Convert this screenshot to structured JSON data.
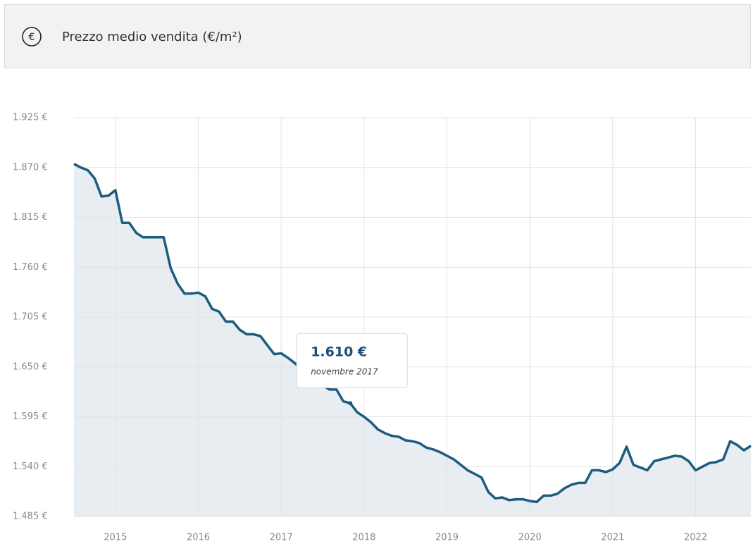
{
  "header": {
    "icon": "€"
  },
  "chart_data": {
    "type": "area",
    "title": "Prezzo medio vendita (€/m²)",
    "color": "#1d5c7e",
    "fill": "#e8edf1",
    "grid": true,
    "x": [
      2014.5,
      2014.583,
      2014.667,
      2014.75,
      2014.833,
      2014.917,
      2015,
      2015.083,
      2015.167,
      2015.25,
      2015.333,
      2015.417,
      2015.5,
      2015.583,
      2015.667,
      2015.75,
      2015.833,
      2015.917,
      2016,
      2016.083,
      2016.167,
      2016.25,
      2016.333,
      2016.417,
      2016.5,
      2016.583,
      2016.667,
      2016.75,
      2016.833,
      2016.917,
      2017,
      2017.083,
      2017.167,
      2017.25,
      2017.333,
      2017.417,
      2017.5,
      2017.583,
      2017.667,
      2017.75,
      2017.833,
      2017.917,
      2018,
      2018.083,
      2018.167,
      2018.25,
      2018.333,
      2018.417,
      2018.5,
      2018.583,
      2018.667,
      2018.75,
      2018.833,
      2018.917,
      2019,
      2019.083,
      2019.167,
      2019.25,
      2019.333,
      2019.417,
      2019.5,
      2019.583,
      2019.667,
      2019.75,
      2019.833,
      2019.917,
      2020,
      2020.083,
      2020.167,
      2020.25,
      2020.333,
      2020.417,
      2020.5,
      2020.583,
      2020.667,
      2020.75,
      2020.833,
      2020.917,
      2021,
      2021.083,
      2021.167,
      2021.25,
      2021.333,
      2021.417,
      2021.5,
      2021.583,
      2021.667,
      2021.75,
      2021.833,
      2021.917,
      2022,
      2022.083,
      2022.167,
      2022.25,
      2022.333,
      2022.417,
      2022.5,
      2022.583,
      2022.667
    ],
    "values": [
      1874,
      1870,
      1867,
      1858,
      1838,
      1839,
      1845,
      1809,
      1809,
      1798,
      1793,
      1793,
      1793,
      1793,
      1759,
      1742,
      1731,
      1731,
      1732,
      1728,
      1714,
      1711,
      1700,
      1700,
      1691,
      1686,
      1686,
      1684,
      1674,
      1664,
      1665,
      1660,
      1654,
      1647,
      1640,
      1635,
      1630,
      1625,
      1625,
      1612,
      1610,
      1600,
      1595,
      1589,
      1581,
      1577,
      1574,
      1573,
      1569,
      1568,
      1566,
      1561,
      1559,
      1556,
      1552,
      1548,
      1542,
      1536,
      1532,
      1528,
      1512,
      1505,
      1506,
      1503,
      1504,
      1504,
      1502,
      1501,
      1508,
      1508,
      1510,
      1516,
      1520,
      1522,
      1522,
      1536,
      1536,
      1534,
      1537,
      1544,
      1562,
      1542,
      1539,
      1536,
      1546,
      1548,
      1550,
      1552,
      1551,
      1546,
      1536,
      1540,
      1544,
      1545,
      1548,
      1568,
      1564,
      1558,
      1563
    ],
    "xlim": [
      2014.5,
      2022.667
    ],
    "xticks": [
      2015,
      2016,
      2017,
      2018,
      2019,
      2020,
      2021,
      2022
    ],
    "ylim": [
      1485,
      1925
    ],
    "yticks": [
      {
        "value": 1485,
        "label": "1.485 €"
      },
      {
        "value": 1540,
        "label": "1.540 €"
      },
      {
        "value": 1595,
        "label": "1.595 €"
      },
      {
        "value": 1650,
        "label": "1.650 €"
      },
      {
        "value": 1705,
        "label": "1.705 €"
      },
      {
        "value": 1760,
        "label": "1.760 €"
      },
      {
        "value": 1815,
        "label": "1.815 €"
      },
      {
        "value": 1870,
        "label": "1.870 €"
      },
      {
        "value": 1925,
        "label": "1.925 €"
      }
    ],
    "tooltip": {
      "x": 2017.833,
      "value": 1610,
      "value_label": "1.610 €",
      "label": "novembre 2017"
    }
  }
}
